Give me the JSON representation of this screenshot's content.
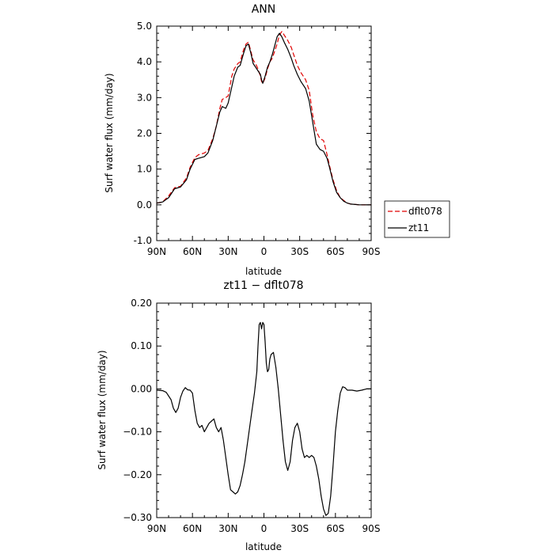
{
  "chart_data": [
    {
      "type": "line",
      "title": "ANN",
      "xlabel": "latitude",
      "ylabel": "Surf water flux (mm/day)",
      "xlim": [
        90,
        -90
      ],
      "ylim": [
        -1.0,
        5.0
      ],
      "x_ticks": [
        90,
        60,
        30,
        0,
        -30,
        -60,
        -90
      ],
      "x_tick_labels": [
        "90N",
        "60N",
        "30N",
        "0",
        "30S",
        "60S",
        "90S"
      ],
      "y_ticks": [
        -1.0,
        0.0,
        1.0,
        2.0,
        3.0,
        4.0,
        5.0
      ],
      "y_tick_labels": [
        "-1.0",
        "0.0",
        "1.0",
        "2.0",
        "3.0",
        "4.0",
        "5.0"
      ],
      "legend_position": "right",
      "series": [
        {
          "name": "dflt078",
          "color": "#e00000",
          "dash": "dashed",
          "x": [
            90,
            85,
            80,
            75,
            70,
            65,
            62,
            58,
            55,
            50,
            47,
            43,
            40,
            37,
            35,
            32,
            30,
            27,
            25,
            22,
            20,
            17,
            15,
            13,
            11,
            9,
            7,
            5,
            3,
            2,
            1,
            -1,
            -3,
            -5,
            -7,
            -9,
            -11,
            -13,
            -15,
            -17,
            -20,
            -23,
            -25,
            -28,
            -31,
            -35,
            -38,
            -41,
            -44,
            -47,
            -50,
            -53,
            -55,
            -58,
            -61,
            -64,
            -67,
            -70,
            -73,
            -77,
            -80,
            -84,
            -90
          ],
          "y": [
            0.05,
            0.08,
            0.25,
            0.48,
            0.52,
            0.75,
            1.05,
            1.32,
            1.4,
            1.45,
            1.52,
            1.85,
            2.2,
            2.7,
            2.95,
            3.0,
            3.05,
            3.6,
            3.8,
            3.95,
            4.0,
            4.35,
            4.5,
            4.55,
            4.3,
            4.05,
            3.95,
            3.8,
            3.6,
            3.45,
            3.4,
            3.55,
            3.8,
            4.0,
            4.1,
            4.3,
            4.5,
            4.75,
            4.85,
            4.75,
            4.6,
            4.4,
            4.2,
            3.9,
            3.7,
            3.5,
            3.2,
            2.5,
            2.05,
            1.85,
            1.8,
            1.4,
            1.1,
            0.7,
            0.4,
            0.2,
            0.12,
            0.05,
            0.02,
            0.01,
            0.0,
            0.0,
            0.0
          ]
        },
        {
          "name": "zt11",
          "color": "#000000",
          "dash": "solid",
          "x": [
            90,
            85,
            80,
            75,
            70,
            65,
            62,
            58,
            55,
            50,
            47,
            43,
            40,
            37,
            35,
            32,
            30,
            27,
            25,
            22,
            20,
            17,
            15,
            13,
            11,
            9,
            7,
            5,
            3,
            2,
            1,
            -1,
            -3,
            -5,
            -7,
            -9,
            -11,
            -13,
            -15,
            -17,
            -20,
            -23,
            -25,
            -28,
            -31,
            -35,
            -38,
            -41,
            -44,
            -47,
            -50,
            -53,
            -55,
            -58,
            -61,
            -64,
            -67,
            -70,
            -73,
            -77,
            -80,
            -84,
            -90
          ],
          "y": [
            0.05,
            0.08,
            0.2,
            0.45,
            0.5,
            0.7,
            1.0,
            1.27,
            1.3,
            1.35,
            1.45,
            1.8,
            2.2,
            2.6,
            2.75,
            2.7,
            2.85,
            3.3,
            3.6,
            3.85,
            3.9,
            4.25,
            4.45,
            4.5,
            4.25,
            3.95,
            3.85,
            3.75,
            3.65,
            3.5,
            3.4,
            3.6,
            3.85,
            4.0,
            4.2,
            4.45,
            4.7,
            4.8,
            4.7,
            4.55,
            4.35,
            4.1,
            3.9,
            3.65,
            3.45,
            3.25,
            2.9,
            2.3,
            1.7,
            1.55,
            1.5,
            1.3,
            1.05,
            0.65,
            0.35,
            0.2,
            0.1,
            0.05,
            0.02,
            0.01,
            0.0,
            0.0,
            0.0
          ]
        }
      ]
    },
    {
      "type": "line",
      "title": "zt11 − dflt078",
      "xlabel": "latitude",
      "ylabel": "Surf water flux (mm/day)",
      "xlim": [
        90,
        -90
      ],
      "ylim": [
        -0.3,
        0.2
      ],
      "x_ticks": [
        90,
        60,
        30,
        0,
        -30,
        -60,
        -90
      ],
      "x_tick_labels": [
        "90N",
        "60N",
        "30N",
        "0",
        "30S",
        "60S",
        "90S"
      ],
      "y_ticks": [
        -0.3,
        -0.2,
        -0.1,
        0.0,
        0.1,
        0.2
      ],
      "y_tick_labels": [
        "−0.30",
        "−0.20",
        "−0.10",
        "0.00",
        "0.10",
        "0.20"
      ],
      "series": [
        {
          "color": "#000000",
          "dash": "solid",
          "x": [
            90,
            85,
            82,
            78,
            76,
            74,
            72,
            70,
            68,
            66,
            64,
            62,
            60,
            58,
            56,
            54,
            52,
            50,
            48,
            46,
            44,
            42,
            40,
            38,
            36,
            34,
            32,
            30,
            28,
            26,
            24,
            22,
            20,
            18,
            16,
            14,
            12,
            10,
            8,
            6,
            5,
            4,
            3,
            2,
            1,
            0,
            -1,
            -2,
            -3,
            -4,
            -5,
            -6,
            -8,
            -10,
            -12,
            -14,
            -16,
            -18,
            -20,
            -22,
            -24,
            -26,
            -28,
            -30,
            -32,
            -34,
            -36,
            -38,
            -40,
            -42,
            -44,
            -46,
            -48,
            -50,
            -52,
            -54,
            -56,
            -58,
            -60,
            -62,
            -64,
            -66,
            -68,
            -70,
            -74,
            -78,
            -82,
            -86,
            -90
          ],
          "y": [
            -0.003,
            -0.004,
            -0.008,
            -0.025,
            -0.045,
            -0.055,
            -0.045,
            -0.02,
            -0.005,
            0.003,
            -0.002,
            -0.003,
            -0.01,
            -0.05,
            -0.08,
            -0.09,
            -0.085,
            -0.1,
            -0.09,
            -0.08,
            -0.075,
            -0.07,
            -0.09,
            -0.1,
            -0.09,
            -0.12,
            -0.16,
            -0.2,
            -0.235,
            -0.24,
            -0.245,
            -0.24,
            -0.225,
            -0.2,
            -0.17,
            -0.13,
            -0.09,
            -0.05,
            -0.01,
            0.04,
            0.1,
            0.15,
            0.155,
            0.14,
            0.155,
            0.15,
            0.11,
            0.06,
            0.04,
            0.045,
            0.07,
            0.08,
            0.085,
            0.05,
            0.0,
            -0.06,
            -0.12,
            -0.17,
            -0.19,
            -0.17,
            -0.12,
            -0.09,
            -0.08,
            -0.1,
            -0.14,
            -0.16,
            -0.155,
            -0.16,
            -0.155,
            -0.16,
            -0.18,
            -0.21,
            -0.25,
            -0.28,
            -0.295,
            -0.29,
            -0.25,
            -0.18,
            -0.1,
            -0.05,
            -0.01,
            0.005,
            0.003,
            -0.003,
            -0.003,
            -0.005,
            -0.003,
            0.0,
            0.0
          ]
        }
      ]
    }
  ]
}
